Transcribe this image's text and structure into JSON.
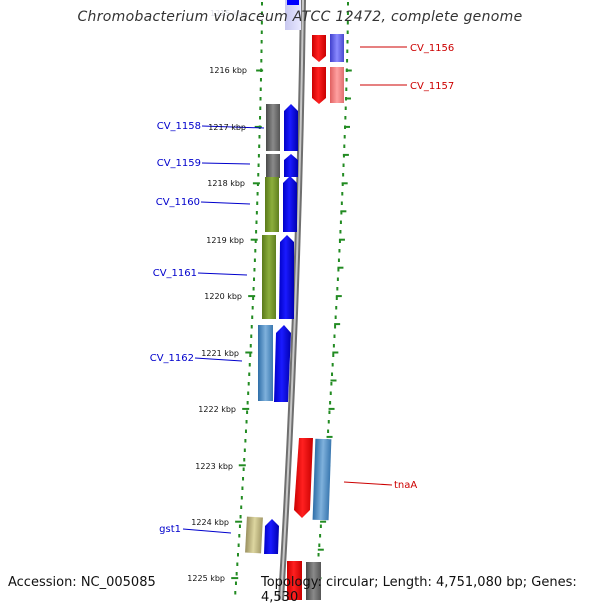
{
  "header": {
    "title": "Chromobacterium violaceum ATCC 12472, complete genome"
  },
  "footer": {
    "accession": "Accession: NC_005085",
    "topology": "Topology: circular; Length: 4,751,080 bp; Genes: 4,530"
  },
  "colors": {
    "backbone": "#8f8f8f",
    "scale": "#228b22",
    "forward_label": "#0000cc",
    "reverse_label": "#cc0000",
    "gene_forward": "#0000ff",
    "gene_reverse": "#ff0000"
  },
  "scale": {
    "ticks": [
      "1216 kbp",
      "1217 kbp",
      "1218 kbp",
      "1219 kbp",
      "1220 kbp",
      "1221 kbp",
      "1222 kbp",
      "1223 kbp",
      "1224 kbp",
      "1225 kbp"
    ]
  },
  "genes": [
    {
      "name": "CV_1156",
      "strand": "reverse"
    },
    {
      "name": "CV_1157",
      "strand": "reverse"
    },
    {
      "name": "CV_1158",
      "strand": "forward"
    },
    {
      "name": "CV_1159",
      "strand": "forward"
    },
    {
      "name": "CV_1160",
      "strand": "forward"
    },
    {
      "name": "CV_1161",
      "strand": "forward"
    },
    {
      "name": "CV_1162",
      "strand": "forward"
    },
    {
      "name": "tnaA",
      "strand": "reverse"
    },
    {
      "name": "gst1",
      "strand": "forward"
    }
  ]
}
